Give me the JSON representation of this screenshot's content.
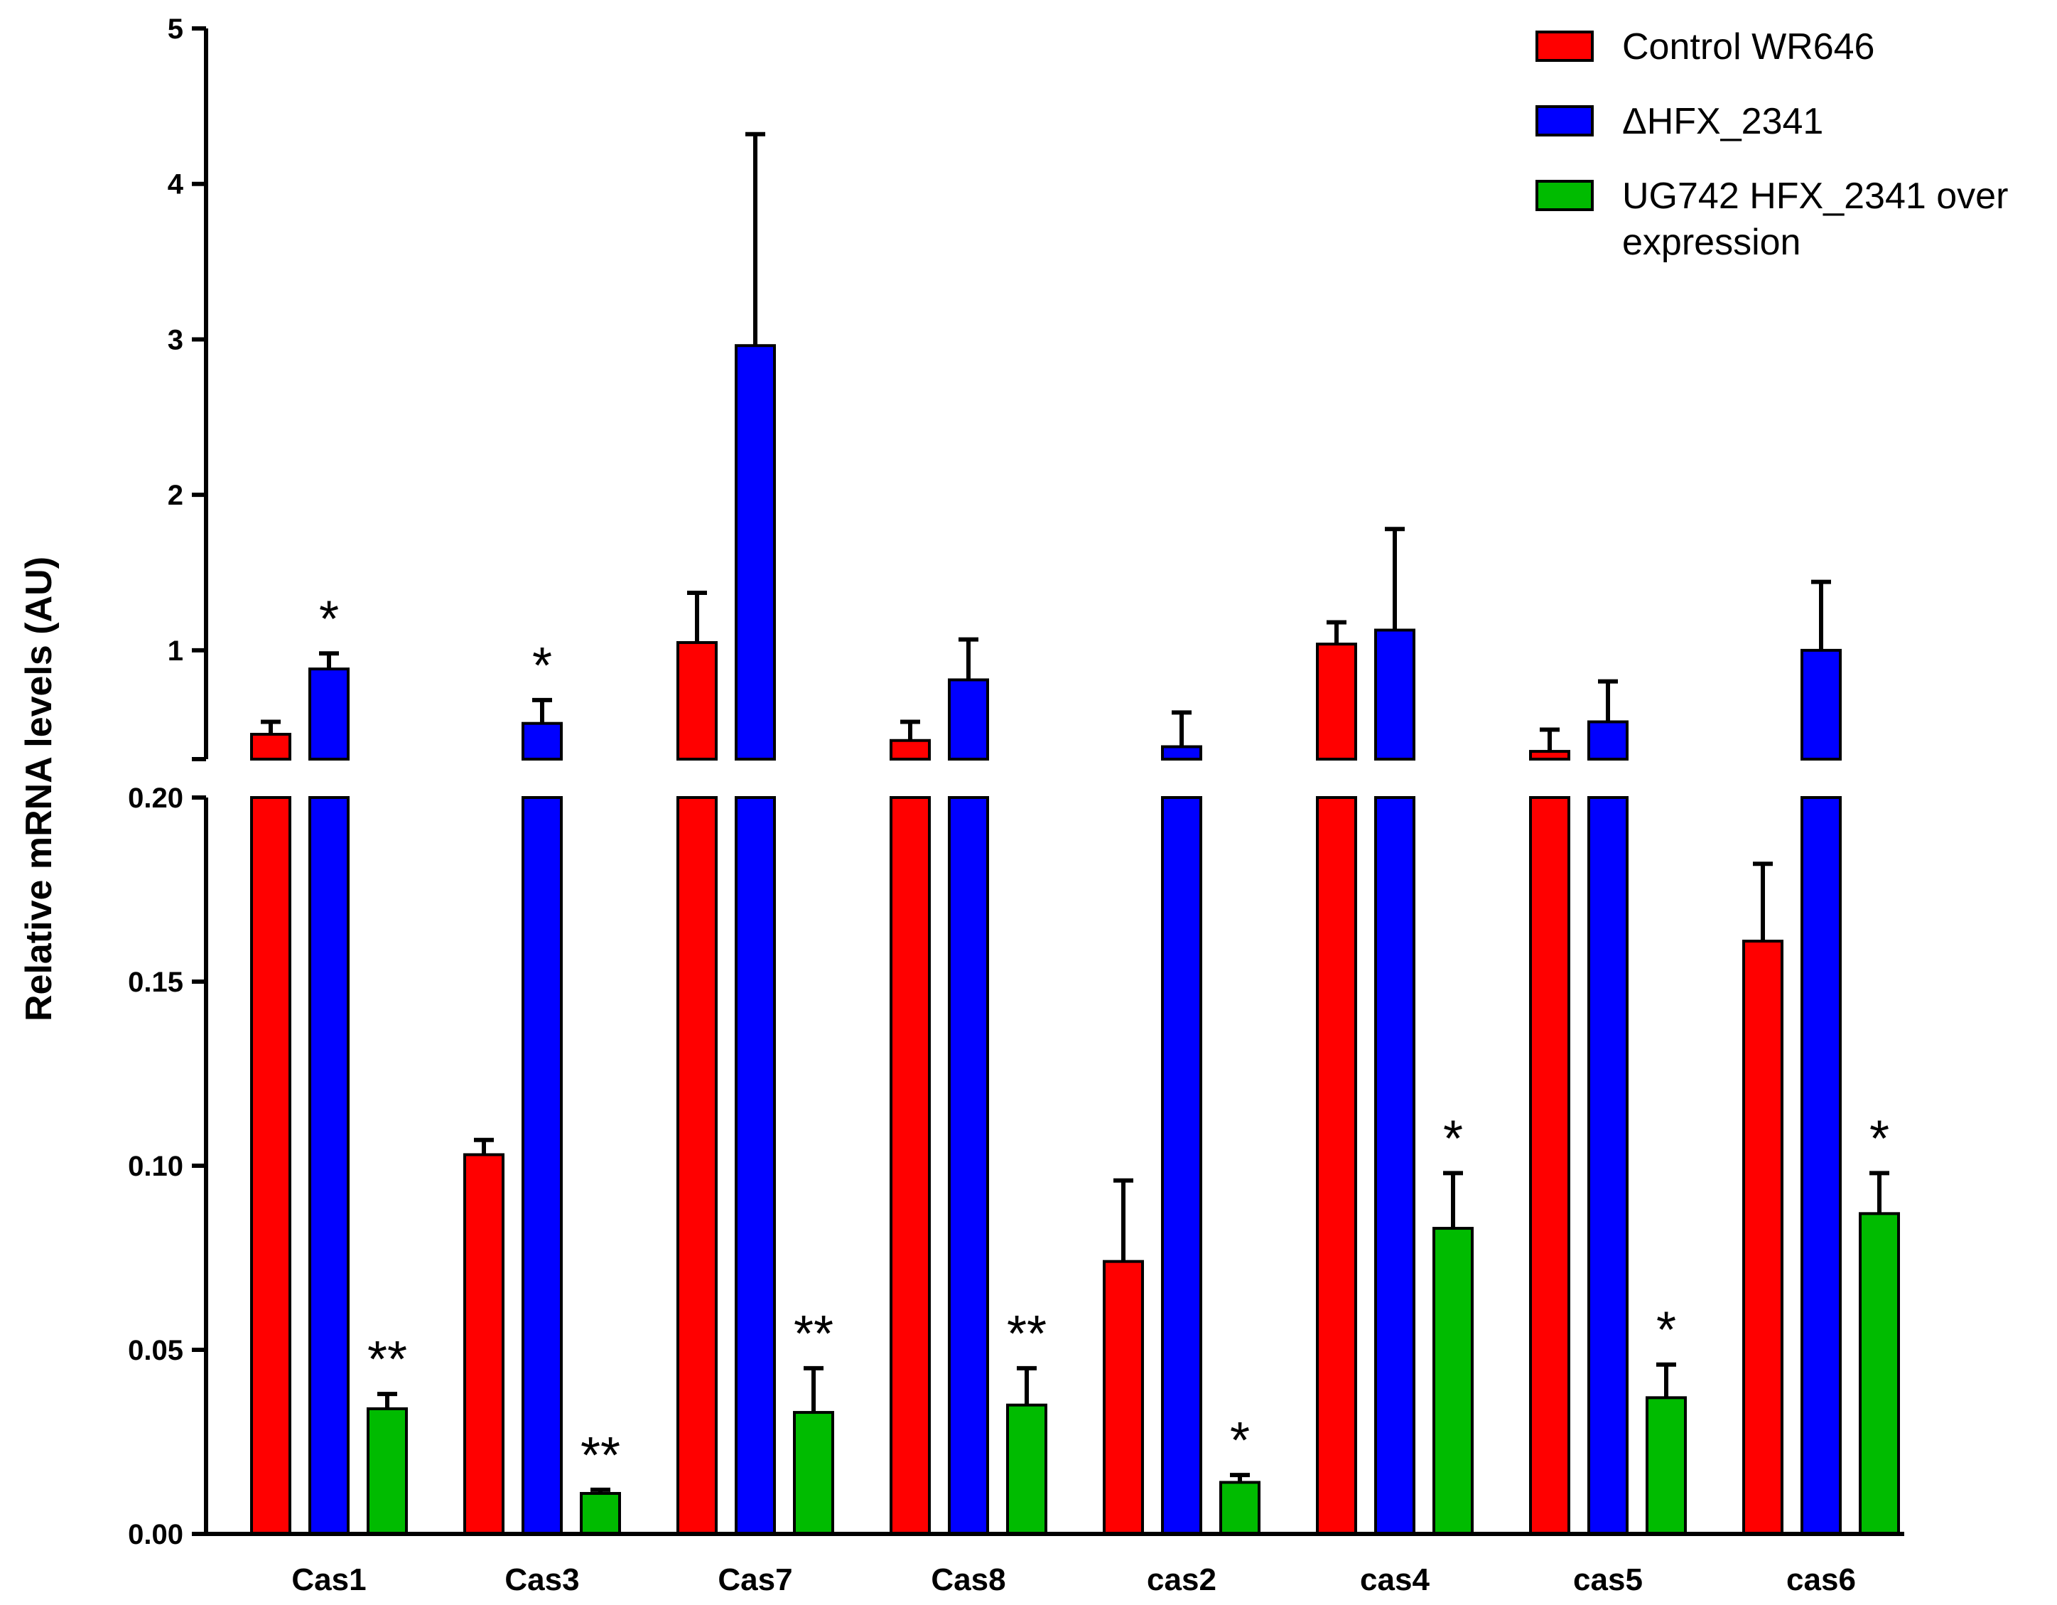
{
  "chart_data": {
    "type": "bar",
    "title": "",
    "xlabel": "",
    "ylabel": "Relative mRNA levels (AU)",
    "categories": [
      "Cas1",
      "Cas3",
      "Cas7",
      "Cas8",
      "cas2",
      "cas4",
      "cas5",
      "cas6"
    ],
    "axis_break": {
      "lower": {
        "ylim": [
          0,
          0.2
        ],
        "ticks": [
          "0.00",
          "0.05",
          "0.10",
          "0.15",
          "0.20"
        ],
        "tick_values": [
          0,
          0.05,
          0.1,
          0.15,
          0.2
        ]
      },
      "upper": {
        "ylim": [
          0.3,
          5
        ],
        "ticks": [
          "1",
          "2",
          "3",
          "4",
          "5"
        ],
        "tick_values": [
          1,
          2,
          3,
          4,
          5
        ]
      }
    },
    "series": [
      {
        "name": "Control WR646",
        "color": "#ff0000",
        "values": [
          0.46,
          0.103,
          1.05,
          0.42,
          0.074,
          1.04,
          0.35,
          0.161
        ],
        "errors": [
          0.08,
          0.004,
          0.32,
          0.12,
          0.022,
          0.14,
          0.14,
          0.021
        ]
      },
      {
        "name": "ΔHFX_2341",
        "color": "#0000ff",
        "values": [
          0.88,
          0.53,
          2.96,
          0.81,
          0.38,
          1.13,
          0.54,
          1.0
        ],
        "errors": [
          0.1,
          0.15,
          1.36,
          0.26,
          0.22,
          0.65,
          0.26,
          0.44
        ]
      },
      {
        "name": "UG742 HFX_2341 over expression",
        "color": "#00bb00",
        "values": [
          0.034,
          0.011,
          0.033,
          0.035,
          0.014,
          0.083,
          0.037,
          0.087
        ],
        "errors": [
          0.004,
          0.001,
          0.012,
          0.01,
          0.002,
          0.015,
          0.009,
          0.011
        ]
      }
    ],
    "legend": {
      "position": "top-right",
      "entries": [
        "Control WR646",
        "ΔHFX_2341",
        "UG742 HFX_2341 over",
        "expression"
      ]
    },
    "annotations": [
      {
        "category": "Cas1",
        "series": "ΔHFX_2341",
        "text": "*"
      },
      {
        "category": "Cas3",
        "series": "ΔHFX_2341",
        "text": "*"
      },
      {
        "category": "Cas1",
        "series": "UG742 HFX_2341 over expression",
        "text": "**"
      },
      {
        "category": "Cas3",
        "series": "UG742 HFX_2341 over expression",
        "text": "**"
      },
      {
        "category": "Cas7",
        "series": "UG742 HFX_2341 over expression",
        "text": "**"
      },
      {
        "category": "Cas8",
        "series": "UG742 HFX_2341 over expression",
        "text": "**"
      },
      {
        "category": "cas2",
        "series": "UG742 HFX_2341 over expression",
        "text": "*"
      },
      {
        "category": "cas4",
        "series": "UG742 HFX_2341 over expression",
        "text": "*"
      },
      {
        "category": "cas5",
        "series": "UG742 HFX_2341 over expression",
        "text": "*"
      },
      {
        "category": "cas6",
        "series": "UG742 HFX_2341 over expression",
        "text": "*"
      }
    ]
  }
}
